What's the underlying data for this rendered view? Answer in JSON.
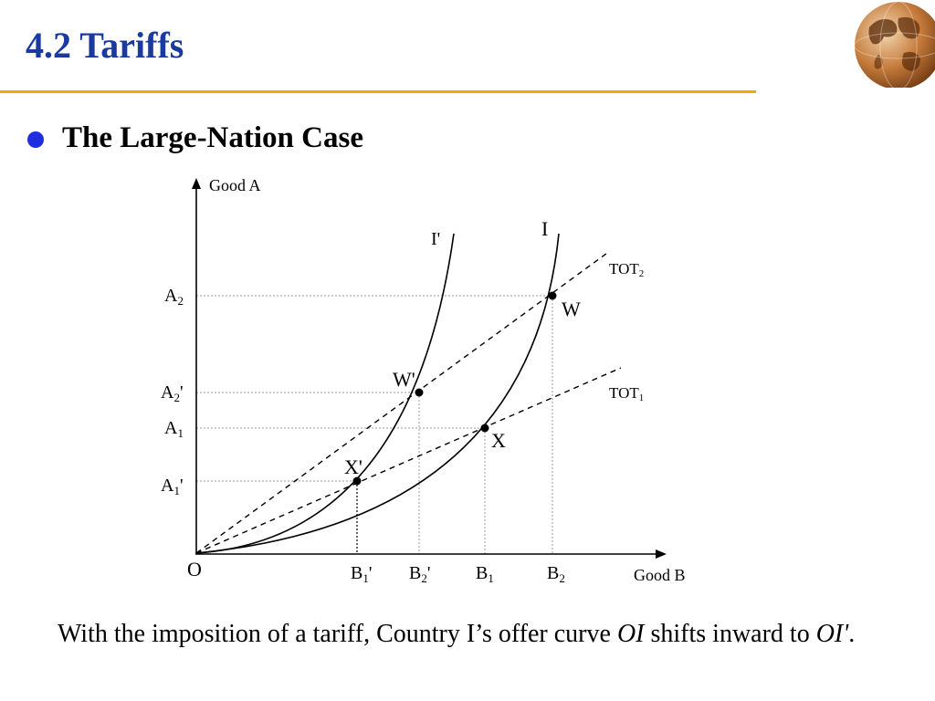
{
  "slide": {
    "title": "4.2 Tariffs",
    "bullet": "The Large-Nation Case",
    "caption": {
      "part1": "With the imposition of a tariff, Country I’s offer curve ",
      "oi": "OI",
      "part2": " shifts inward to ",
      "oi_prime": "OI'",
      "part3": "."
    },
    "colors": {
      "title": "#1a3aa0",
      "rule": "#f2a900",
      "bullet": "#1f2fe0"
    },
    "logo_icon": "globe-icon"
  },
  "diagram": {
    "y_axis_label": "Good A",
    "x_axis_label": "Good B",
    "origin_label": "O",
    "curve_labels": {
      "I": "I",
      "I_prime": "I'"
    },
    "tot_lines": [
      {
        "base": "TOT",
        "sub": "2"
      },
      {
        "base": "TOT",
        "sub": "1"
      }
    ],
    "points": [
      {
        "name": "W",
        "label": "W"
      },
      {
        "name": "W_prime",
        "label": "W'"
      },
      {
        "name": "X",
        "label": "X"
      },
      {
        "name": "X_prime",
        "label": "X'"
      }
    ],
    "y_ticks": [
      {
        "base": "A",
        "sub": "2",
        "prime": ""
      },
      {
        "base": "A",
        "sub": "2",
        "prime": "'"
      },
      {
        "base": "A",
        "sub": "1",
        "prime": ""
      },
      {
        "base": "A",
        "sub": "1",
        "prime": "'"
      }
    ],
    "x_ticks": [
      {
        "base": "B",
        "sub": "1",
        "prime": "'"
      },
      {
        "base": "B",
        "sub": "2",
        "prime": "'"
      },
      {
        "base": "B",
        "sub": "1",
        "prime": ""
      },
      {
        "base": "B",
        "sub": "2",
        "prime": ""
      }
    ]
  }
}
